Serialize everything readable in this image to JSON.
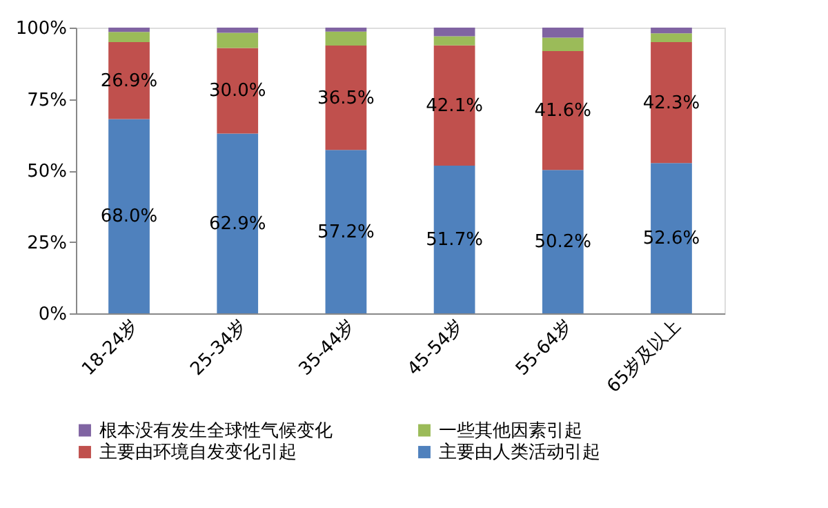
{
  "chart_data": {
    "type": "bar",
    "stacked": true,
    "categories": [
      "18-24岁",
      "25-34岁",
      "35-44岁",
      "45-54岁",
      "55-64岁",
      "65岁及以上"
    ],
    "series": [
      {
        "name": "主要由人类活动引起",
        "color": "#4f81bd",
        "values": [
          68.0,
          62.9,
          57.2,
          51.7,
          50.2,
          52.6
        ],
        "value_labels": [
          "68.0%",
          "62.9%",
          "57.2%",
          "51.7%",
          "50.2%",
          "52.6%"
        ]
      },
      {
        "name": "主要由环境自发变化引起",
        "color": "#c0504d",
        "values": [
          26.9,
          30.0,
          36.5,
          42.1,
          41.6,
          42.3
        ],
        "value_labels": [
          "26.9%",
          "30.0%",
          "36.5%",
          "42.1%",
          "41.6%",
          "42.3%"
        ]
      },
      {
        "name": "一些其他因素引起",
        "color": "#9bbb59",
        "values": [
          3.6,
          5.3,
          4.9,
          3.2,
          4.7,
          3.1
        ]
      },
      {
        "name": "根本没有发生全球性气候变化",
        "color": "#8064a2",
        "values": [
          1.5,
          1.8,
          1.4,
          3.0,
          3.5,
          2.0
        ]
      }
    ],
    "ylim": [
      0,
      100
    ],
    "yticks": [
      {
        "value": 0,
        "label": "0%"
      },
      {
        "value": 25,
        "label": "25%"
      },
      {
        "value": 50,
        "label": "50%"
      },
      {
        "value": 75,
        "label": "75%"
      },
      {
        "value": 100,
        "label": "100%"
      }
    ],
    "grid": false,
    "legend": "bottom"
  }
}
